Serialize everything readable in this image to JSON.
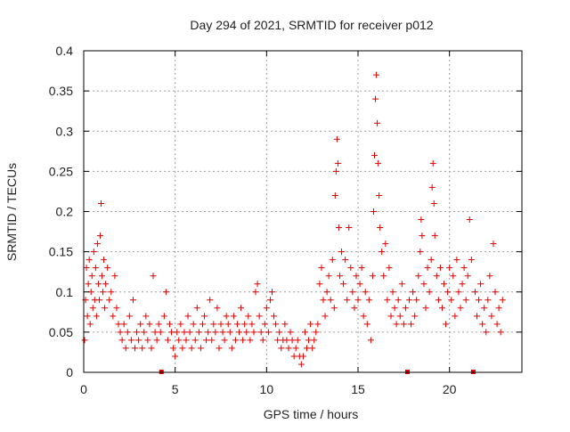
{
  "chart_data": {
    "type": "scatter",
    "title": "Day 294 of 2021, SRMTID for receiver p012",
    "xlabel": "GPS time / hours",
    "ylabel": "SRMTID / TECUs",
    "xlim": [
      0,
      23.96
    ],
    "ylim": [
      0,
      0.4
    ],
    "x_ticks": [
      0,
      5,
      10,
      15,
      20
    ],
    "y_ticks": [
      0,
      0.05,
      0.1,
      0.15,
      0.2,
      0.25,
      0.3,
      0.35,
      0.4
    ],
    "x_tick_labels": [
      "0",
      "5",
      "10",
      "15",
      "20"
    ],
    "y_tick_labels": [
      "0",
      "0.05",
      "0.1",
      "0.15",
      "0.2",
      "0.25",
      "0.3",
      "0.35",
      "0.4"
    ],
    "grid": true,
    "marker": "+",
    "color": "#e00000",
    "gap_markers_x": [
      4.25,
      17.7,
      21.3
    ],
    "series": [
      {
        "name": "SRMTID",
        "points": [
          [
            0.05,
            0.04
          ],
          [
            0.1,
            0.09
          ],
          [
            0.15,
            0.13
          ],
          [
            0.2,
            0.07
          ],
          [
            0.25,
            0.11
          ],
          [
            0.3,
            0.14
          ],
          [
            0.35,
            0.06
          ],
          [
            0.4,
            0.1
          ],
          [
            0.45,
            0.12
          ],
          [
            0.5,
            0.08
          ],
          [
            0.55,
            0.15
          ],
          [
            0.6,
            0.09
          ],
          [
            0.65,
            0.13
          ],
          [
            0.7,
            0.07
          ],
          [
            0.75,
            0.16
          ],
          [
            0.8,
            0.11
          ],
          [
            0.85,
            0.09
          ],
          [
            0.9,
            0.17
          ],
          [
            0.95,
            0.21
          ],
          [
            1.0,
            0.12
          ],
          [
            1.05,
            0.1
          ],
          [
            1.1,
            0.14
          ],
          [
            1.15,
            0.08
          ],
          [
            1.2,
            0.11
          ],
          [
            1.3,
            0.13
          ],
          [
            1.4,
            0.09
          ],
          [
            1.5,
            0.1
          ],
          [
            1.6,
            0.07
          ],
          [
            1.7,
            0.12
          ],
          [
            1.8,
            0.08
          ],
          [
            1.9,
            0.06
          ],
          [
            2.0,
            0.05
          ],
          [
            2.1,
            0.04
          ],
          [
            2.2,
            0.06
          ],
          [
            2.3,
            0.03
          ],
          [
            2.4,
            0.05
          ],
          [
            2.5,
            0.07
          ],
          [
            2.6,
            0.04
          ],
          [
            2.7,
            0.09
          ],
          [
            2.8,
            0.03
          ],
          [
            2.9,
            0.05
          ],
          [
            3.0,
            0.04
          ],
          [
            3.1,
            0.06
          ],
          [
            3.2,
            0.03
          ],
          [
            3.3,
            0.05
          ],
          [
            3.4,
            0.07
          ],
          [
            3.5,
            0.04
          ],
          [
            3.6,
            0.06
          ],
          [
            3.7,
            0.03
          ],
          [
            3.8,
            0.12
          ],
          [
            3.9,
            0.05
          ],
          [
            4.0,
            0.04
          ],
          [
            4.1,
            0.06
          ],
          [
            4.2,
            0.05
          ],
          [
            4.4,
            0.07
          ],
          [
            4.5,
            0.1
          ],
          [
            4.6,
            0.04
          ],
          [
            4.7,
            0.06
          ],
          [
            4.8,
            0.05
          ],
          [
            4.9,
            0.03
          ],
          [
            5.0,
            0.02
          ],
          [
            5.1,
            0.05
          ],
          [
            5.2,
            0.04
          ],
          [
            5.3,
            0.06
          ],
          [
            5.4,
            0.03
          ],
          [
            5.5,
            0.05
          ],
          [
            5.6,
            0.04
          ],
          [
            5.7,
            0.07
          ],
          [
            5.8,
            0.05
          ],
          [
            5.9,
            0.03
          ],
          [
            6.0,
            0.06
          ],
          [
            6.1,
            0.04
          ],
          [
            6.2,
            0.08
          ],
          [
            6.3,
            0.05
          ],
          [
            6.4,
            0.03
          ],
          [
            6.5,
            0.06
          ],
          [
            6.6,
            0.07
          ],
          [
            6.7,
            0.04
          ],
          [
            6.8,
            0.05
          ],
          [
            6.9,
            0.09
          ],
          [
            7.0,
            0.04
          ],
          [
            7.1,
            0.06
          ],
          [
            7.2,
            0.05
          ],
          [
            7.3,
            0.08
          ],
          [
            7.4,
            0.03
          ],
          [
            7.5,
            0.06
          ],
          [
            7.6,
            0.05
          ],
          [
            7.7,
            0.04
          ],
          [
            7.8,
            0.07
          ],
          [
            7.9,
            0.06
          ],
          [
            8.0,
            0.05
          ],
          [
            8.1,
            0.03
          ],
          [
            8.2,
            0.07
          ],
          [
            8.3,
            0.04
          ],
          [
            8.4,
            0.06
          ],
          [
            8.5,
            0.05
          ],
          [
            8.6,
            0.08
          ],
          [
            8.7,
            0.04
          ],
          [
            8.8,
            0.06
          ],
          [
            8.9,
            0.05
          ],
          [
            9.0,
            0.07
          ],
          [
            9.1,
            0.04
          ],
          [
            9.2,
            0.06
          ],
          [
            9.3,
            0.05
          ],
          [
            9.4,
            0.1
          ],
          [
            9.5,
            0.11
          ],
          [
            9.6,
            0.07
          ],
          [
            9.7,
            0.05
          ],
          [
            9.8,
            0.04
          ],
          [
            9.9,
            0.06
          ],
          [
            10.0,
            0.08
          ],
          [
            10.1,
            0.05
          ],
          [
            10.2,
            0.09
          ],
          [
            10.3,
            0.1
          ],
          [
            10.4,
            0.07
          ],
          [
            10.5,
            0.06
          ],
          [
            10.6,
            0.04
          ],
          [
            10.7,
            0.05
          ],
          [
            10.8,
            0.03
          ],
          [
            10.9,
            0.04
          ],
          [
            11.0,
            0.06
          ],
          [
            11.1,
            0.04
          ],
          [
            11.2,
            0.03
          ],
          [
            11.3,
            0.05
          ],
          [
            11.4,
            0.04
          ],
          [
            11.5,
            0.02
          ],
          [
            11.6,
            0.03
          ],
          [
            11.7,
            0.04
          ],
          [
            11.8,
            0.02
          ],
          [
            11.9,
            0.01
          ],
          [
            12.0,
            0.02
          ],
          [
            12.1,
            0.05
          ],
          [
            12.2,
            0.03
          ],
          [
            12.3,
            0.04
          ],
          [
            12.4,
            0.06
          ],
          [
            12.5,
            0.03
          ],
          [
            12.6,
            0.04
          ],
          [
            12.7,
            0.05
          ],
          [
            12.8,
            0.06
          ],
          [
            12.9,
            0.11
          ],
          [
            13.0,
            0.13
          ],
          [
            13.1,
            0.09
          ],
          [
            13.2,
            0.07
          ],
          [
            13.3,
            0.1
          ],
          [
            13.4,
            0.12
          ],
          [
            13.5,
            0.09
          ],
          [
            13.6,
            0.14
          ],
          [
            13.7,
            0.08
          ],
          [
            13.75,
            0.22
          ],
          [
            13.8,
            0.25
          ],
          [
            13.85,
            0.29
          ],
          [
            13.9,
            0.26
          ],
          [
            13.95,
            0.18
          ],
          [
            14.0,
            0.12
          ],
          [
            14.1,
            0.15
          ],
          [
            14.2,
            0.11
          ],
          [
            14.3,
            0.14
          ],
          [
            14.4,
            0.09
          ],
          [
            14.5,
            0.18
          ],
          [
            14.6,
            0.13
          ],
          [
            14.7,
            0.1
          ],
          [
            14.8,
            0.08
          ],
          [
            14.9,
            0.12
          ],
          [
            15.0,
            0.09
          ],
          [
            15.1,
            0.11
          ],
          [
            15.2,
            0.13
          ],
          [
            15.3,
            0.07
          ],
          [
            15.4,
            0.1
          ],
          [
            15.5,
            0.06
          ],
          [
            15.6,
            0.09
          ],
          [
            15.7,
            0.04
          ],
          [
            15.8,
            0.12
          ],
          [
            15.85,
            0.2
          ],
          [
            15.9,
            0.27
          ],
          [
            15.95,
            0.34
          ],
          [
            16.0,
            0.37
          ],
          [
            16.05,
            0.31
          ],
          [
            16.1,
            0.26
          ],
          [
            16.15,
            0.22
          ],
          [
            16.2,
            0.18
          ],
          [
            16.3,
            0.15
          ],
          [
            16.4,
            0.12
          ],
          [
            16.5,
            0.16
          ],
          [
            16.6,
            0.09
          ],
          [
            16.7,
            0.13
          ],
          [
            16.8,
            0.07
          ],
          [
            16.9,
            0.1
          ],
          [
            17.0,
            0.08
          ],
          [
            17.1,
            0.06
          ],
          [
            17.2,
            0.09
          ],
          [
            17.3,
            0.07
          ],
          [
            17.4,
            0.11
          ],
          [
            17.5,
            0.06
          ],
          [
            17.6,
            0.08
          ],
          [
            17.8,
            0.09
          ],
          [
            17.9,
            0.06
          ],
          [
            18.0,
            0.1
          ],
          [
            18.1,
            0.07
          ],
          [
            18.2,
            0.09
          ],
          [
            18.3,
            0.12
          ],
          [
            18.4,
            0.15
          ],
          [
            18.45,
            0.19
          ],
          [
            18.5,
            0.17
          ],
          [
            18.6,
            0.11
          ],
          [
            18.7,
            0.08
          ],
          [
            18.8,
            0.13
          ],
          [
            18.9,
            0.1
          ],
          [
            19.0,
            0.14
          ],
          [
            19.05,
            0.23
          ],
          [
            19.1,
            0.26
          ],
          [
            19.15,
            0.21
          ],
          [
            19.2,
            0.17
          ],
          [
            19.3,
            0.12
          ],
          [
            19.4,
            0.09
          ],
          [
            19.5,
            0.13
          ],
          [
            19.6,
            0.08
          ],
          [
            19.7,
            0.11
          ],
          [
            19.8,
            0.06
          ],
          [
            19.9,
            0.1
          ],
          [
            20.0,
            0.13
          ],
          [
            20.1,
            0.09
          ],
          [
            20.2,
            0.12
          ],
          [
            20.3,
            0.07
          ],
          [
            20.4,
            0.14
          ],
          [
            20.5,
            0.1
          ],
          [
            20.6,
            0.08
          ],
          [
            20.7,
            0.11
          ],
          [
            20.8,
            0.13
          ],
          [
            20.9,
            0.09
          ],
          [
            21.0,
            0.12
          ],
          [
            21.1,
            0.19
          ],
          [
            21.2,
            0.14
          ],
          [
            21.4,
            0.1
          ],
          [
            21.5,
            0.07
          ],
          [
            21.6,
            0.09
          ],
          [
            21.7,
            0.11
          ],
          [
            21.8,
            0.06
          ],
          [
            21.9,
            0.08
          ],
          [
            22.0,
            0.05
          ],
          [
            22.1,
            0.09
          ],
          [
            22.2,
            0.12
          ],
          [
            22.3,
            0.07
          ],
          [
            22.4,
            0.16
          ],
          [
            22.5,
            0.1
          ],
          [
            22.6,
            0.06
          ],
          [
            22.7,
            0.08
          ],
          [
            22.8,
            0.05
          ],
          [
            22.9,
            0.09
          ]
        ]
      }
    ]
  }
}
